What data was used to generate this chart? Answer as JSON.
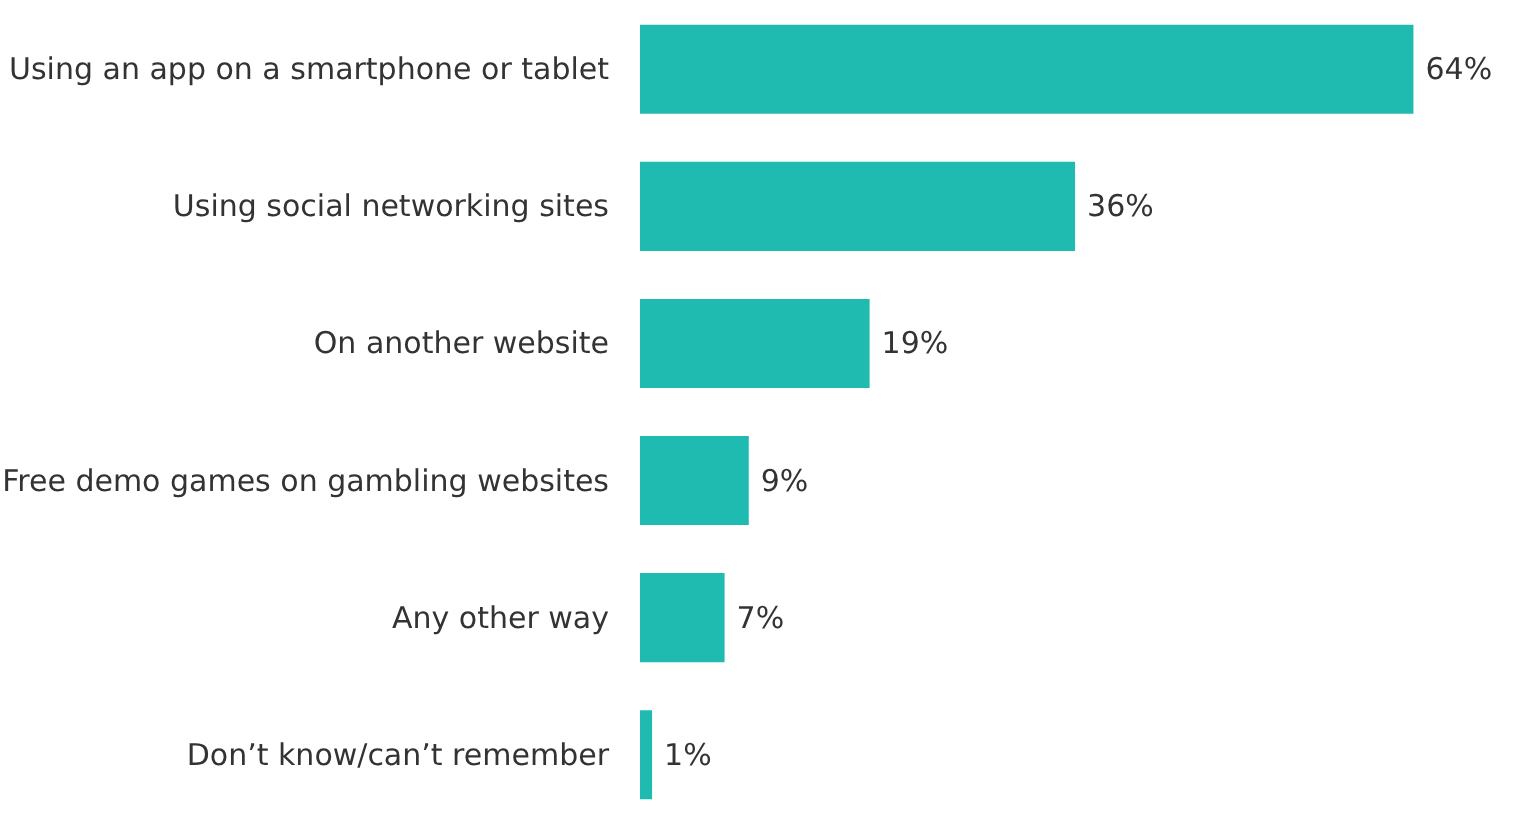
{
  "chart_data": {
    "type": "bar",
    "orientation": "horizontal",
    "categories": [
      "Using an app on a smartphone or tablet",
      "Using social networking sites",
      "On another website",
      "Free demo games on gambling websites",
      "Any other way",
      "Don’t know/can’t remember"
    ],
    "values": [
      64,
      36,
      19,
      9,
      7,
      1
    ],
    "value_labels": [
      "64%",
      "36%",
      "19%",
      "9%",
      "7%",
      "1%"
    ],
    "color": "#20bbb0"
  }
}
